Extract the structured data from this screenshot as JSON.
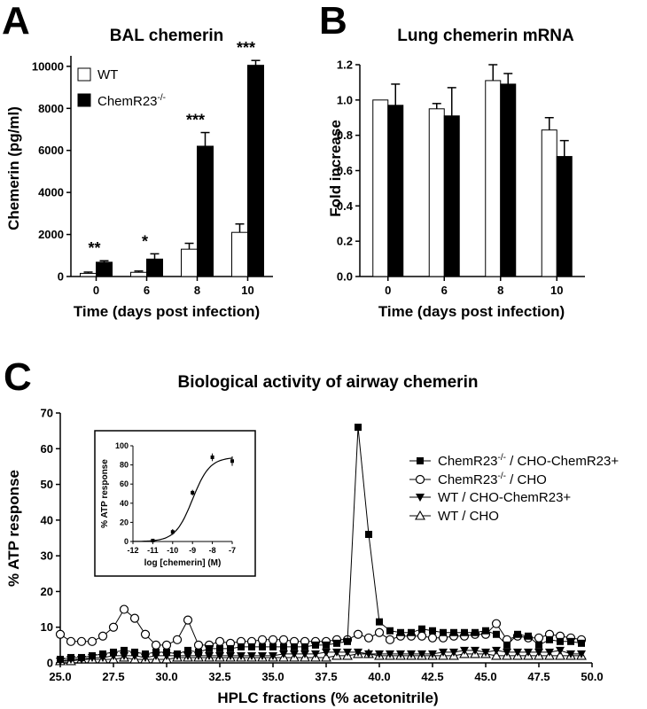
{
  "panels": {
    "a_label": "A",
    "b_label": "B",
    "c_label": "C"
  },
  "chart_data": [
    {
      "id": "A",
      "type": "bar",
      "title": "BAL chemerin",
      "xlabel": "Time (days post infection)",
      "ylabel": "Chemerin (pg/ml)",
      "categories": [
        "0",
        "6",
        "8",
        "10"
      ],
      "ylim": [
        0,
        10500
      ],
      "yticks": [
        0,
        2000,
        4000,
        6000,
        8000,
        10000
      ],
      "series": [
        {
          "name": "WT",
          "fill": "#ffffff",
          "values": [
            150,
            200,
            1300,
            2100
          ],
          "errors": [
            60,
            60,
            280,
            400
          ]
        },
        {
          "name": "ChemR23",
          "name_sup": "-/-",
          "fill": "#000000",
          "values": [
            680,
            830,
            6200,
            10050
          ],
          "errors": [
            70,
            250,
            650,
            230
          ]
        }
      ],
      "significance": [
        "**",
        "*",
        "***",
        "***"
      ],
      "legend": "top-left"
    },
    {
      "id": "B",
      "type": "bar",
      "title": "Lung chemerin mRNA",
      "xlabel": "Time (days post infection)",
      "ylabel": "Fold increase",
      "categories": [
        "0",
        "6",
        "8",
        "10"
      ],
      "ylim": [
        0,
        1.2
      ],
      "yticks": [
        "0.0",
        "0.2",
        "0.4",
        "0.6",
        "0.8",
        "1.0",
        "1.2"
      ],
      "series": [
        {
          "fill": "#ffffff",
          "values": [
            1.0,
            0.95,
            1.11,
            0.83
          ],
          "errors": [
            0,
            0.03,
            0.09,
            0.07
          ]
        },
        {
          "fill": "#000000",
          "values": [
            0.97,
            0.91,
            1.09,
            0.68
          ],
          "errors": [
            0.12,
            0.16,
            0.06,
            0.09
          ]
        }
      ]
    },
    {
      "id": "C",
      "type": "line",
      "title": "Biological activity of airway chemerin",
      "xlabel": "HPLC fractions (% acetonitrile)",
      "ylabel": "% ATP response",
      "xlim": [
        25,
        50
      ],
      "ylim": [
        0,
        70
      ],
      "xticks": [
        "25.0",
        "27.5",
        "30.0",
        "32.5",
        "35.0",
        "37.5",
        "40.0",
        "42.5",
        "45.0",
        "47.5",
        "50.0"
      ],
      "yticks": [
        0,
        10,
        20,
        30,
        40,
        50,
        60,
        70
      ],
      "legend": "right",
      "series": [
        {
          "name": "ChemR23",
          "name_sup": "-/-",
          "name_rest": " / CHO-ChemR23+",
          "marker": "square-filled",
          "x": [
            25,
            25.5,
            26,
            26.5,
            27,
            27.5,
            28,
            28.5,
            29,
            29.5,
            30,
            30.5,
            31,
            31.5,
            32,
            32.5,
            33,
            33.5,
            34,
            34.5,
            35,
            35.5,
            36,
            36.5,
            37,
            37.5,
            38,
            38.5,
            39,
            39.5,
            40,
            40.5,
            41,
            41.5,
            42,
            42.5,
            43,
            43.5,
            44,
            44.5,
            45,
            45.5,
            46,
            46.5,
            47,
            47.5,
            48,
            48.5,
            49,
            49.5
          ],
          "y": [
            1,
            1.5,
            1.5,
            2,
            2.5,
            3,
            3.5,
            3,
            2.5,
            3,
            3,
            2.5,
            3.5,
            3,
            4,
            4,
            4,
            4.5,
            4.5,
            4.5,
            4.5,
            4.5,
            4.5,
            4.5,
            5,
            5,
            5.5,
            6,
            66,
            36,
            11.5,
            9,
            8.5,
            8.5,
            9.5,
            9,
            8.5,
            8.5,
            8.5,
            8.5,
            9,
            8,
            5,
            8,
            7.5,
            5,
            6.5,
            6,
            6,
            5.5
          ]
        },
        {
          "name": "ChemR23",
          "name_sup": "-/-",
          "name_rest": " / CHO",
          "marker": "circle-open",
          "x": [
            25,
            25.5,
            26,
            26.5,
            27,
            27.5,
            28,
            28.5,
            29,
            29.5,
            30,
            30.5,
            31,
            31.5,
            32,
            32.5,
            33,
            33.5,
            34,
            34.5,
            35,
            35.5,
            36,
            36.5,
            37,
            37.5,
            38,
            38.5,
            39,
            39.5,
            40,
            40.5,
            41,
            41.5,
            42,
            42.5,
            43,
            43.5,
            44,
            44.5,
            45,
            45.5,
            46,
            46.5,
            47,
            47.5,
            48,
            48.5,
            49,
            49.5
          ],
          "y": [
            8,
            6,
            6,
            6,
            7.5,
            10,
            15,
            12.5,
            8,
            5,
            5,
            6.5,
            12,
            5,
            5,
            6,
            5.5,
            6,
            6,
            6.5,
            6.5,
            6.5,
            6,
            6,
            6,
            6,
            6.5,
            6.5,
            8,
            7,
            8.5,
            6.5,
            7.5,
            7.5,
            7.5,
            7,
            7,
            7.5,
            7.5,
            8,
            8,
            11,
            6.5,
            7.5,
            7,
            7,
            8,
            7.5,
            7,
            6.5
          ]
        },
        {
          "name": "WT",
          "name_rest": " / CHO-ChemR23+",
          "marker": "triangle-down-filled",
          "x": [
            25,
            25.5,
            26,
            26.5,
            27,
            27.5,
            28,
            28.5,
            29,
            29.5,
            30,
            30.5,
            31,
            31.5,
            32,
            32.5,
            33,
            33.5,
            34,
            34.5,
            35,
            35.5,
            36,
            36.5,
            37,
            37.5,
            38,
            38.5,
            39,
            39.5,
            40,
            40.5,
            41,
            41.5,
            42,
            42.5,
            43,
            43.5,
            44,
            44.5,
            45,
            45.5,
            46,
            46.5,
            47,
            47.5,
            48,
            48.5,
            49,
            49.5
          ],
          "y": [
            0.5,
            1,
            1,
            1.5,
            1.5,
            2,
            2,
            2,
            1.5,
            2,
            2,
            2,
            2,
            2,
            2,
            2,
            2,
            2,
            2,
            2,
            2,
            2.5,
            2.5,
            2.5,
            2.5,
            3,
            3,
            3,
            3,
            2.5,
            2.5,
            2.5,
            2.5,
            2.5,
            2.5,
            2.5,
            3,
            3,
            3.5,
            3.5,
            3,
            3.5,
            3,
            3,
            3,
            3,
            3,
            3.5,
            2.5,
            2.5
          ]
        },
        {
          "name": "WT",
          "name_rest": " / CHO",
          "marker": "triangle-up-open",
          "x": [
            25,
            25.5,
            26,
            26.5,
            27,
            27.5,
            28,
            28.5,
            29,
            29.5,
            30,
            30.5,
            31,
            31.5,
            32,
            32.5,
            33,
            33.5,
            34,
            34.5,
            35,
            35.5,
            36,
            36.5,
            37,
            37.5,
            38,
            38.5,
            39,
            39.5,
            40,
            40.5,
            41,
            41.5,
            42,
            42.5,
            43,
            43.5,
            44,
            44.5,
            45,
            45.5,
            46,
            46.5,
            47,
            47.5,
            48,
            48.5,
            49,
            49.5
          ],
          "y": [
            0.5,
            0.5,
            1,
            1,
            1,
            1,
            1.5,
            1,
            1,
            1,
            1,
            1.5,
            1.5,
            1.5,
            1.5,
            1.5,
            1.5,
            1.5,
            1.5,
            1.5,
            1.5,
            1.5,
            1.5,
            1.5,
            1.5,
            1.5,
            2,
            2,
            2.5,
            2.5,
            2,
            2,
            2,
            2,
            2,
            2,
            2,
            2,
            2.5,
            2.5,
            2.5,
            2,
            2,
            2,
            2,
            2,
            2,
            2,
            2,
            2
          ]
        }
      ],
      "inset": {
        "type": "line",
        "xlabel": "log [chemerin] (M)",
        "ylabel": "% ATP response",
        "xlim": [
          -12,
          -7
        ],
        "ylim": [
          0,
          100
        ],
        "xticks": [
          "-12",
          "-11",
          "-10",
          "-9",
          "-8",
          "-7"
        ],
        "yticks": [
          "0",
          "20",
          "40",
          "60",
          "80",
          "100"
        ],
        "points": {
          "x": [
            -11,
            -10,
            -9,
            -8,
            -7
          ],
          "y": [
            1,
            10,
            51,
            88,
            84
          ],
          "errors": [
            1,
            3,
            3,
            4,
            5
          ]
        }
      }
    }
  ]
}
